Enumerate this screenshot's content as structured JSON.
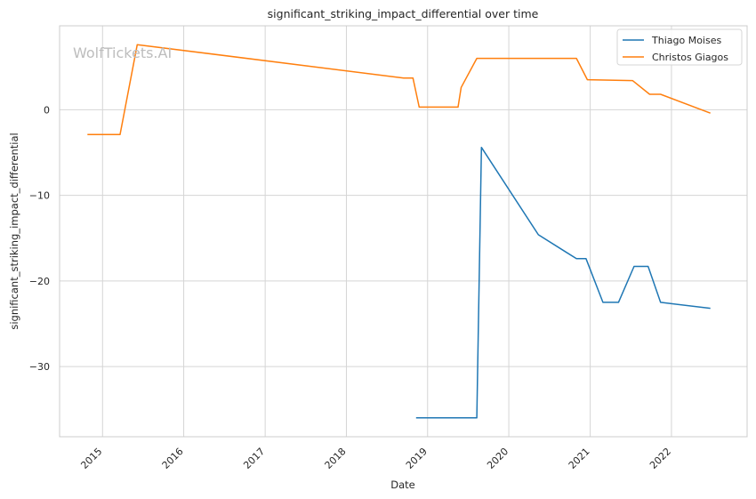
{
  "chart_data": {
    "type": "line",
    "title": "significant_striking_impact_differential over time",
    "xlabel": "Date",
    "ylabel": "significant_striking_impact_differential",
    "watermark": "WolfTickets.AI",
    "xlim": [
      "2014-06-22",
      "2022-12-07"
    ],
    "ylim": [
      -38.2,
      9.8
    ],
    "x_ticks": [
      "2015",
      "2016",
      "2017",
      "2018",
      "2019",
      "2020",
      "2021",
      "2022"
    ],
    "y_ticks": [
      0,
      -10,
      -20,
      -30
    ],
    "y_tick_labels": [
      "0",
      "−10",
      "−20",
      "−30"
    ],
    "grid": true,
    "legend_position": "top-right",
    "series": [
      {
        "name": "Thiago Moises",
        "color": "#1f77b4",
        "points": [
          [
            "2018-11-10",
            -36.0
          ],
          [
            "2019-08-10",
            -36.0
          ],
          [
            "2019-08-31",
            -4.4
          ],
          [
            "2020-05-13",
            -14.6
          ],
          [
            "2020-10-31",
            -17.4
          ],
          [
            "2020-12-13",
            -17.4
          ],
          [
            "2021-02-27",
            -22.5
          ],
          [
            "2021-05-08",
            -22.5
          ],
          [
            "2021-07-17",
            -18.3
          ],
          [
            "2021-09-18",
            -18.3
          ],
          [
            "2021-11-13",
            -22.5
          ],
          [
            "2022-06-25",
            -23.2
          ]
        ]
      },
      {
        "name": "Christos Giagos",
        "color": "#ff7f0e",
        "points": [
          [
            "2014-10-25",
            -2.9
          ],
          [
            "2015-03-21",
            -2.9
          ],
          [
            "2015-06-06",
            7.6
          ],
          [
            "2018-09-15",
            3.7
          ],
          [
            "2018-10-27",
            3.7
          ],
          [
            "2018-11-24",
            0.3
          ],
          [
            "2019-05-18",
            0.3
          ],
          [
            "2019-06-01",
            2.6
          ],
          [
            "2019-08-10",
            6.0
          ],
          [
            "2020-10-31",
            6.0
          ],
          [
            "2020-12-19",
            3.5
          ],
          [
            "2021-07-10",
            3.4
          ],
          [
            "2021-09-25",
            1.8
          ],
          [
            "2021-11-13",
            1.8
          ],
          [
            "2022-06-25",
            -0.4
          ]
        ]
      }
    ]
  }
}
